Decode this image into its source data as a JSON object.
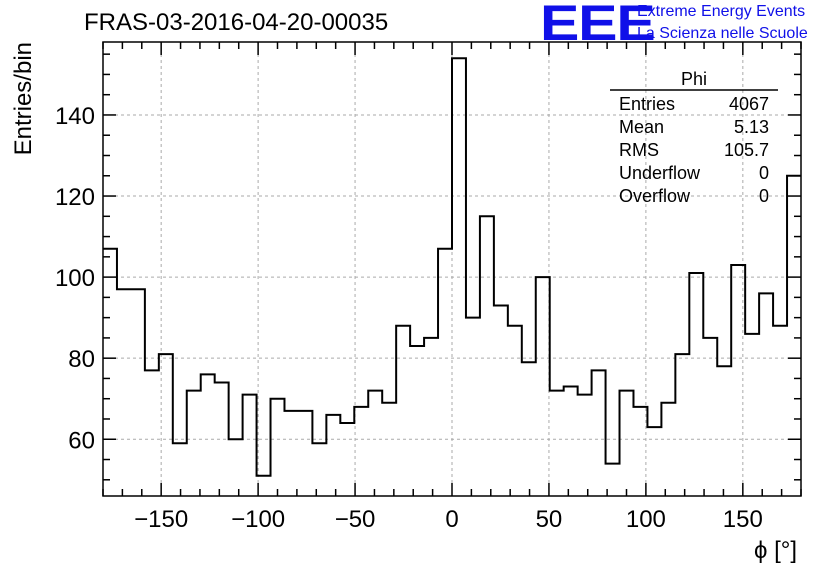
{
  "header": {
    "run_title": "FRAS-03-2016-04-20-00035",
    "logo_text": "EEE",
    "logo_line1": "Extreme Energy Events",
    "logo_line2": "La Scienza nelle Scuole",
    "logo_color": "#1010e8"
  },
  "chart_data": {
    "type": "histogram",
    "xlabel": "ϕ [°]",
    "ylabel": "Entries/bin",
    "xlim": [
      -180,
      180
    ],
    "ylim": [
      46,
      158
    ],
    "xticks": [
      -150,
      -100,
      -50,
      0,
      50,
      100,
      150
    ],
    "yticks": [
      60,
      80,
      100,
      120,
      140
    ],
    "grid": true,
    "bin_width": 7.2,
    "values": [
      107,
      97,
      97,
      77,
      81,
      59,
      72,
      76,
      74,
      60,
      71,
      51,
      70,
      67,
      67,
      59,
      66,
      64,
      68,
      72,
      69,
      88,
      83,
      85,
      107,
      154,
      90,
      115,
      93,
      88,
      79,
      100,
      72,
      73,
      71,
      77,
      54,
      72,
      68,
      63,
      69,
      81,
      101,
      85,
      78,
      103,
      86,
      96,
      88,
      125
    ],
    "stats": {
      "title": "Phi",
      "rows": [
        {
          "label": "Entries",
          "value": "4067"
        },
        {
          "label": "Mean",
          "value": "5.13"
        },
        {
          "label": "RMS",
          "value": "105.7"
        },
        {
          "label": "Underflow",
          "value": "0"
        },
        {
          "label": "Overflow",
          "value": "0"
        }
      ]
    }
  }
}
